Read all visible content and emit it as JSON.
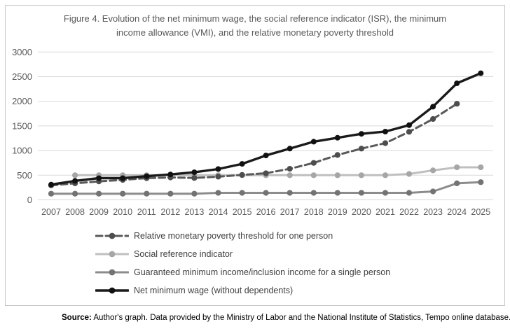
{
  "figure": {
    "frame_border_color": "#c6c6c6",
    "gridline_color": "#d9d9d9",
    "tick_label_color": "#595959",
    "title_color": "#595959"
  },
  "source": {
    "label": "Source:",
    "text": " Author's graph. Data provided by the Ministry of Labor and the National Institute of Statistics, Tempo online database."
  },
  "chart_data": {
    "type": "line",
    "title": "Figure 4. Evolution of the net minimum wage, the social reference indicator (ISR), the minimum income allowance (VMI), and the relative monetary poverty threshold",
    "xlabel": "",
    "ylabel": "",
    "x": [
      2007,
      2008,
      2009,
      2010,
      2011,
      2012,
      2013,
      2014,
      2015,
      2016,
      2017,
      2018,
      2019,
      2020,
      2021,
      2022,
      2023,
      2024,
      2025
    ],
    "yticks": [
      0,
      500,
      1000,
      1500,
      2000,
      2500,
      3000
    ],
    "ylim": [
      0,
      3000
    ],
    "grid": true,
    "markers": true,
    "legend_position": "bottom-left",
    "series": [
      {
        "name": "Relative monetary poverty threshold for one person",
        "style": "dashed",
        "color": "#595959",
        "marker_color": "#4d4d4d",
        "values": [
          295,
          335,
          375,
          405,
          440,
          455,
          445,
          470,
          505,
          540,
          630,
          750,
          910,
          1040,
          1150,
          1380,
          1640,
          1950,
          null
        ]
      },
      {
        "name": "Social reference indicator",
        "style": "solid",
        "color": "#bfbfbf",
        "marker_color": "#a6a6a6",
        "values": [
          null,
          500,
          500,
          500,
          500,
          500,
          500,
          500,
          500,
          500,
          500,
          500,
          500,
          500,
          500,
          525,
          598,
          661,
          661
        ]
      },
      {
        "name": "Guaranteed minimum income/inclusion income for a single person",
        "style": "solid",
        "color": "#8c8c8c",
        "marker_color": "#737373",
        "values": [
          125,
          125,
          125,
          125,
          125,
          125,
          125,
          142,
          142,
          142,
          142,
          142,
          142,
          142,
          142,
          142,
          170,
          335,
          360
        ]
      },
      {
        "name": "Net minimum wage (without dependents)",
        "style": "solid",
        "color": "#1a1a1a",
        "marker_color": "#111111",
        "values": [
          310,
          385,
          440,
          440,
          480,
          515,
          560,
          625,
          730,
          900,
          1040,
          1180,
          1260,
          1340,
          1385,
          1515,
          1890,
          2365,
          2570
        ]
      }
    ]
  }
}
